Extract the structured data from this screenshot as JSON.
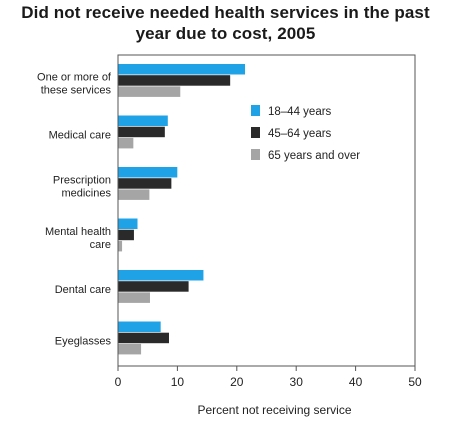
{
  "chart_data": {
    "type": "bar",
    "orientation": "horizontal",
    "title": [
      "Did not receive needed health services in the past",
      "year due to cost, 2005"
    ],
    "xlabel": "Percent not receiving service",
    "ylabel": "",
    "xlim": [
      0,
      50
    ],
    "xticks": [
      0,
      10,
      20,
      30,
      40,
      50
    ],
    "grid": false,
    "legend_position": "right",
    "categories": [
      [
        "One or more of",
        "these services"
      ],
      [
        "Medical care"
      ],
      [
        "Prescription",
        "medicines"
      ],
      [
        "Mental health",
        "care"
      ],
      [
        "Dental care"
      ],
      [
        "Eyeglasses"
      ]
    ],
    "series": [
      {
        "name": "18–44 years",
        "color": "#1fa3e6",
        "values": [
          21.3,
          8.3,
          9.9,
          3.2,
          14.3,
          7.1
        ]
      },
      {
        "name": "45–64 years",
        "color": "#2a2a2a",
        "values": [
          18.8,
          7.8,
          8.9,
          2.6,
          11.8,
          8.5
        ]
      },
      {
        "name": "65 years and over",
        "color": "#a5a5a5",
        "values": [
          10.4,
          2.5,
          5.2,
          0.6,
          5.3,
          3.8
        ]
      }
    ]
  }
}
